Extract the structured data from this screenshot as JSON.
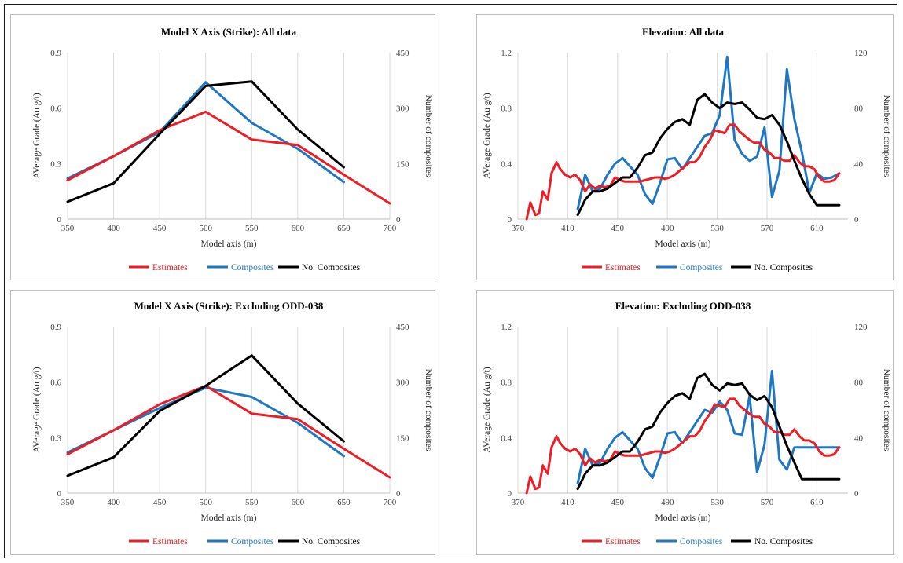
{
  "colors": {
    "estimates": "#ee1c25",
    "composites": "#1f77c2",
    "no_composites": "#000000",
    "grid": "#d9d9d9"
  },
  "chart_data": [
    {
      "type": "line",
      "title": "Model X Axis (Strike): All data",
      "xlabel": "Model axis (m)",
      "ylabel": "AVerage Grade (Au g/t)",
      "y2label": "Number of composites",
      "xlim": [
        350,
        700
      ],
      "xticks": [
        350,
        400,
        450,
        500,
        550,
        600,
        650,
        700
      ],
      "ylim": [
        0,
        0.9
      ],
      "yticks": [
        "0",
        "0.3",
        "0.6",
        "0.9"
      ],
      "y2lim": [
        0,
        450
      ],
      "y2ticks": [
        "0",
        "150",
        "300",
        "450"
      ],
      "grid": "vertical",
      "legend": "bottom",
      "series": [
        {
          "name": "Estimates",
          "axis": "left",
          "color_key": "estimates",
          "x": [
            350,
            400,
            450,
            500,
            550,
            600,
            650,
            700
          ],
          "y": [
            0.21,
            0.34,
            0.48,
            0.58,
            0.43,
            0.4,
            0.24,
            0.085
          ]
        },
        {
          "name": "Composites",
          "axis": "left",
          "color_key": "composites",
          "x": [
            350,
            400,
            450,
            500,
            550,
            600,
            650
          ],
          "y": [
            0.22,
            0.34,
            0.47,
            0.74,
            0.52,
            0.38,
            0.2
          ]
        },
        {
          "name": "No. Composites",
          "axis": "right",
          "color_key": "no_composites",
          "x": [
            350,
            400,
            450,
            500,
            550,
            600,
            650
          ],
          "y": [
            47,
            97,
            230,
            360,
            372,
            242,
            140
          ]
        }
      ]
    },
    {
      "type": "line",
      "title": "Elevation: All data",
      "xlabel": "Model axis (m)",
      "ylabel": "AVerage Grade (Au g/t)",
      "y2label": "Number of composites",
      "xlim": [
        370,
        635
      ],
      "xticks": [
        370,
        410,
        450,
        490,
        530,
        570,
        610
      ],
      "ylim": [
        0,
        1.2
      ],
      "yticks": [
        "0",
        "0.4",
        "0.8",
        "1.2"
      ],
      "y2lim": [
        0,
        120
      ],
      "y2ticks": [
        "0",
        "40",
        "80",
        "120"
      ],
      "grid": "vertical",
      "legend": "bottom",
      "series": [
        {
          "name": "Estimates",
          "axis": "left",
          "color_key": "estimates",
          "x": [
            377,
            380,
            384,
            387,
            390,
            394,
            397,
            401,
            404,
            408,
            412,
            416,
            420,
            424,
            428,
            432,
            436,
            440,
            444,
            448,
            452,
            456,
            460,
            464,
            468,
            472,
            476,
            480,
            484,
            488,
            492,
            496,
            500,
            504,
            508,
            512,
            516,
            520,
            524,
            528,
            532,
            536,
            540,
            544,
            548,
            552,
            556,
            560,
            564,
            568,
            572,
            576,
            580,
            584,
            588,
            592,
            596,
            600,
            604,
            608,
            612,
            616,
            620,
            624,
            628
          ],
          "y": [
            0.0,
            0.12,
            0.03,
            0.04,
            0.2,
            0.14,
            0.33,
            0.41,
            0.36,
            0.32,
            0.3,
            0.32,
            0.28,
            0.2,
            0.25,
            0.22,
            0.24,
            0.23,
            0.24,
            0.3,
            0.28,
            0.27,
            0.27,
            0.27,
            0.27,
            0.28,
            0.29,
            0.3,
            0.3,
            0.29,
            0.3,
            0.32,
            0.35,
            0.38,
            0.41,
            0.41,
            0.45,
            0.52,
            0.57,
            0.64,
            0.63,
            0.62,
            0.68,
            0.68,
            0.63,
            0.6,
            0.57,
            0.55,
            0.55,
            0.5,
            0.48,
            0.44,
            0.44,
            0.42,
            0.42,
            0.46,
            0.41,
            0.38,
            0.38,
            0.36,
            0.3,
            0.27,
            0.27,
            0.28,
            0.33
          ]
        },
        {
          "name": "Composites",
          "axis": "left",
          "color_key": "composites",
          "x": [
            418,
            424,
            430,
            436,
            442,
            448,
            454,
            460,
            466,
            472,
            478,
            484,
            490,
            496,
            502,
            508,
            514,
            520,
            526,
            532,
            538,
            544,
            550,
            556,
            562,
            568,
            574,
            580,
            586,
            592,
            598,
            604,
            610,
            616,
            622,
            628
          ],
          "y": [
            0.07,
            0.32,
            0.2,
            0.22,
            0.32,
            0.4,
            0.44,
            0.38,
            0.32,
            0.18,
            0.11,
            0.26,
            0.43,
            0.44,
            0.36,
            0.44,
            0.52,
            0.6,
            0.62,
            0.75,
            1.17,
            0.57,
            0.47,
            0.42,
            0.45,
            0.66,
            0.16,
            0.35,
            1.08,
            0.72,
            0.48,
            0.19,
            0.33,
            0.29,
            0.3,
            0.33
          ]
        },
        {
          "name": "No. Composites",
          "axis": "right",
          "color_key": "no_composites",
          "x": [
            418,
            424,
            430,
            436,
            442,
            448,
            454,
            460,
            466,
            472,
            478,
            484,
            490,
            496,
            502,
            508,
            514,
            520,
            526,
            532,
            538,
            544,
            550,
            556,
            562,
            568,
            574,
            580,
            586,
            592,
            598,
            604,
            610,
            616,
            622,
            628
          ],
          "y": [
            3,
            14,
            20,
            20,
            22,
            26,
            30,
            30,
            37,
            46,
            48,
            58,
            65,
            70,
            72,
            68,
            86,
            90,
            84,
            80,
            84,
            83,
            84,
            79,
            73,
            72,
            75,
            68,
            56,
            42,
            29,
            18,
            10,
            10,
            10,
            10
          ]
        }
      ]
    },
    {
      "type": "line",
      "title": "Model X Axis (Strike): Excluding ODD-038",
      "xlabel": "Model axis (m)",
      "ylabel": "AVerage Grade (Au g/t)",
      "y2label": "Number of composites",
      "xlim": [
        350,
        700
      ],
      "xticks": [
        350,
        400,
        450,
        500,
        550,
        600,
        650,
        700
      ],
      "ylim": [
        0,
        0.9
      ],
      "yticks": [
        "0",
        "0.3",
        "0.6",
        "0.9"
      ],
      "y2lim": [
        0,
        450
      ],
      "y2ticks": [
        "0",
        "150",
        "300",
        "450"
      ],
      "grid": "vertical",
      "legend": "bottom",
      "series": [
        {
          "name": "Estimates",
          "axis": "left",
          "color_key": "estimates",
          "x": [
            350,
            400,
            450,
            500,
            550,
            600,
            650,
            700
          ],
          "y": [
            0.21,
            0.34,
            0.48,
            0.58,
            0.43,
            0.4,
            0.24,
            0.085
          ]
        },
        {
          "name": "Composites",
          "axis": "left",
          "color_key": "composites",
          "x": [
            350,
            400,
            450,
            500,
            550,
            600,
            650
          ],
          "y": [
            0.22,
            0.34,
            0.46,
            0.57,
            0.52,
            0.38,
            0.2
          ]
        },
        {
          "name": "No. Composites",
          "axis": "right",
          "color_key": "no_composites",
          "x": [
            350,
            400,
            450,
            500,
            550,
            600,
            650
          ],
          "y": [
            47,
            97,
            222,
            290,
            372,
            242,
            140
          ]
        }
      ]
    },
    {
      "type": "line",
      "title": "Elevation: Excluding ODD-038",
      "xlabel": "Model axis (m)",
      "ylabel": "AVerage Grade (Au g/t)",
      "y2label": "Number of composites",
      "xlim": [
        370,
        635
      ],
      "xticks": [
        370,
        410,
        450,
        490,
        530,
        570,
        610
      ],
      "ylim": [
        0,
        1.2
      ],
      "yticks": [
        "0",
        "0.4",
        "0.8",
        "1.2"
      ],
      "y2lim": [
        0,
        120
      ],
      "y2ticks": [
        "0",
        "40",
        "80",
        "120"
      ],
      "grid": "vertical",
      "legend": "bottom",
      "series": [
        {
          "name": "Estimates",
          "axis": "left",
          "color_key": "estimates",
          "x": [
            377,
            380,
            384,
            387,
            390,
            394,
            397,
            401,
            404,
            408,
            412,
            416,
            420,
            424,
            428,
            432,
            436,
            440,
            444,
            448,
            452,
            456,
            460,
            464,
            468,
            472,
            476,
            480,
            484,
            488,
            492,
            496,
            500,
            504,
            508,
            512,
            516,
            520,
            524,
            528,
            532,
            536,
            540,
            544,
            548,
            552,
            556,
            560,
            564,
            568,
            572,
            576,
            580,
            584,
            588,
            592,
            596,
            600,
            604,
            608,
            612,
            616,
            620,
            624,
            628
          ],
          "y": [
            0.0,
            0.12,
            0.03,
            0.04,
            0.2,
            0.14,
            0.33,
            0.41,
            0.36,
            0.32,
            0.3,
            0.32,
            0.28,
            0.2,
            0.25,
            0.22,
            0.24,
            0.23,
            0.24,
            0.3,
            0.28,
            0.27,
            0.27,
            0.27,
            0.27,
            0.28,
            0.29,
            0.3,
            0.3,
            0.29,
            0.3,
            0.32,
            0.35,
            0.38,
            0.41,
            0.41,
            0.45,
            0.52,
            0.57,
            0.64,
            0.63,
            0.62,
            0.68,
            0.68,
            0.63,
            0.6,
            0.57,
            0.55,
            0.55,
            0.5,
            0.48,
            0.44,
            0.44,
            0.42,
            0.42,
            0.46,
            0.41,
            0.38,
            0.38,
            0.36,
            0.3,
            0.27,
            0.27,
            0.28,
            0.33
          ]
        },
        {
          "name": "Composites",
          "axis": "left",
          "color_key": "composites",
          "x": [
            418,
            424,
            430,
            436,
            442,
            448,
            454,
            460,
            466,
            472,
            478,
            484,
            490,
            496,
            502,
            508,
            514,
            520,
            526,
            532,
            538,
            544,
            550,
            556,
            562,
            568,
            574,
            580,
            586,
            592,
            598,
            604,
            610,
            616,
            622,
            628
          ],
          "y": [
            0.07,
            0.32,
            0.2,
            0.22,
            0.32,
            0.4,
            0.44,
            0.38,
            0.32,
            0.18,
            0.11,
            0.26,
            0.43,
            0.44,
            0.36,
            0.44,
            0.52,
            0.6,
            0.58,
            0.66,
            0.6,
            0.43,
            0.42,
            0.7,
            0.15,
            0.35,
            0.88,
            0.24,
            0.17,
            0.33,
            0.33,
            0.33,
            0.33,
            0.33,
            0.33,
            0.33
          ]
        },
        {
          "name": "No. Composites",
          "axis": "right",
          "color_key": "no_composites",
          "x": [
            418,
            424,
            430,
            436,
            442,
            448,
            454,
            460,
            466,
            472,
            478,
            484,
            490,
            496,
            502,
            508,
            514,
            520,
            526,
            532,
            538,
            544,
            550,
            556,
            562,
            568,
            574,
            580,
            586,
            592,
            598,
            604,
            610,
            616,
            622,
            628
          ],
          "y": [
            3,
            14,
            20,
            20,
            22,
            26,
            30,
            30,
            37,
            46,
            48,
            58,
            65,
            70,
            72,
            68,
            83,
            86,
            78,
            74,
            79,
            78,
            79,
            71,
            67,
            70,
            62,
            48,
            34,
            22,
            10,
            10,
            10,
            10,
            10,
            10
          ]
        }
      ]
    }
  ]
}
